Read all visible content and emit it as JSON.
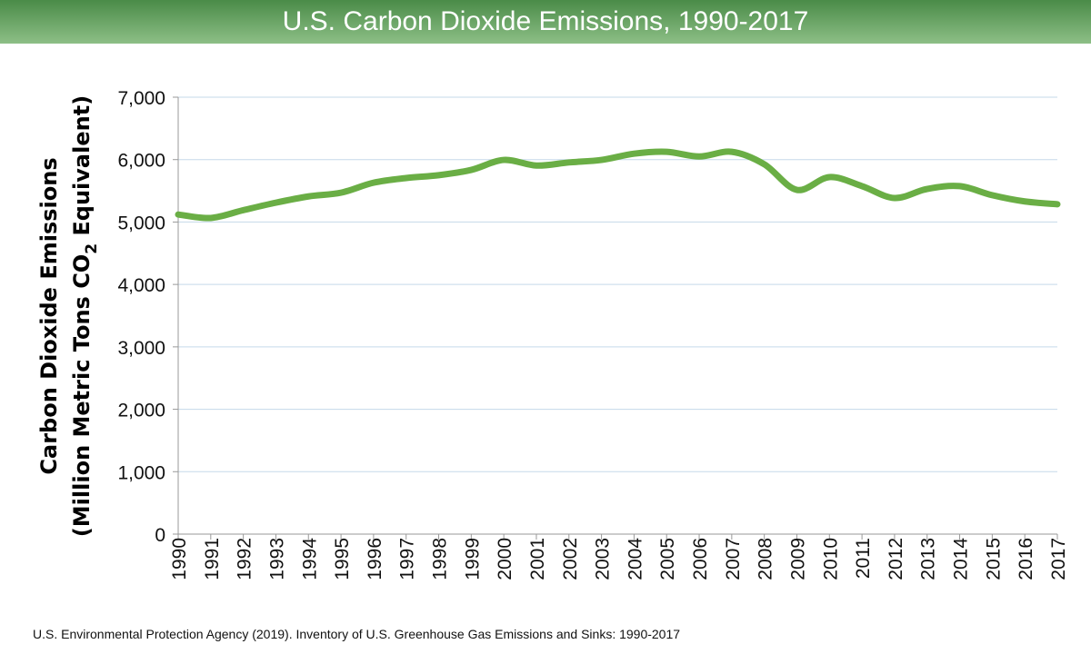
{
  "chart_data": {
    "type": "line",
    "title": "U.S. Carbon Dioxide Emissions, 1990-2017",
    "ylabel_line1": "Carbon Dioxide Emissions",
    "ylabel_line2_pre": "(Million Metric Tons CO",
    "ylabel_line2_sub": "2",
    "ylabel_line2_post": " Equivalent)",
    "xlabel": "",
    "ylim": [
      0,
      7000
    ],
    "yticks": [
      "0",
      "1,000",
      "2,000",
      "3,000",
      "4,000",
      "5,000",
      "6,000",
      "7,000"
    ],
    "x": [
      1990,
      1991,
      1992,
      1993,
      1994,
      1995,
      1996,
      1997,
      1998,
      1999,
      2000,
      2001,
      2002,
      2003,
      2004,
      2005,
      2006,
      2007,
      2008,
      2009,
      2010,
      2011,
      2012,
      2013,
      2014,
      2015,
      2016,
      2017
    ],
    "series": [
      {
        "values": [
          5120,
          5065,
          5190,
          5310,
          5410,
          5470,
          5630,
          5705,
          5750,
          5835,
          5995,
          5905,
          5955,
          5995,
          6095,
          6125,
          6050,
          6125,
          5925,
          5515,
          5720,
          5575,
          5385,
          5530,
          5575,
          5430,
          5330,
          5285
        ],
        "color": "#6aae45"
      }
    ],
    "grid": true,
    "gridColor": "#c5d9ea",
    "source": "U.S. Environmental Protection Agency (2019). Inventory of U.S. Greenhouse Gas Emissions and Sinks: 1990-2017"
  }
}
